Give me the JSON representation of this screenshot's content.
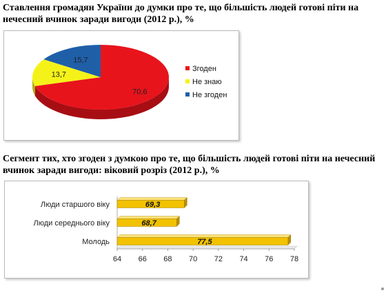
{
  "headings": {
    "pie": "Ставлення громадян України до думки про те, що більшість людей готові піти на нечесний вчинок заради вигоди (2012 р.), %",
    "bar": "Сегмент тих, хто згоден з думкою про те, що більшість людей готові піти на нечесний вчинок заради вигоди: віковий розріз (2012 р.), %"
  },
  "chart_data": [
    {
      "type": "pie",
      "title": "Ставлення громадян України до думки про те, що більшість людей готові піти на нечесний вчинок заради вигоди (2012 р.), %",
      "three_d": true,
      "legend_position": "right",
      "slices": [
        {
          "label": "Згоден",
          "value": 70.6,
          "value_label": "70,6",
          "color": "#e8141c"
        },
        {
          "label": "Не знаю",
          "value": 13.7,
          "value_label": "13,7",
          "color": "#f5f219"
        },
        {
          "label": "Не згоден",
          "value": 15.7,
          "value_label": "15,7",
          "color": "#1f5fa8"
        }
      ]
    },
    {
      "type": "bar",
      "orientation": "horizontal",
      "three_d": true,
      "title": "Сегмент тих, хто згоден з думкою про те, що більшість людей готові піти на нечесний вчинок заради вигоди: віковий розріз (2012 р.), %",
      "categories": [
        "Люди старшого віку",
        "Люди середнього віку",
        "Молодь"
      ],
      "values": [
        69.3,
        68.7,
        77.5
      ],
      "value_labels": [
        "69,3",
        "68,7",
        "77,5"
      ],
      "xlim": [
        64,
        78
      ],
      "xticks": [
        64,
        66,
        68,
        70,
        72,
        74,
        76,
        78
      ],
      "grid": false,
      "bar_color": "#f2c200"
    }
  ]
}
